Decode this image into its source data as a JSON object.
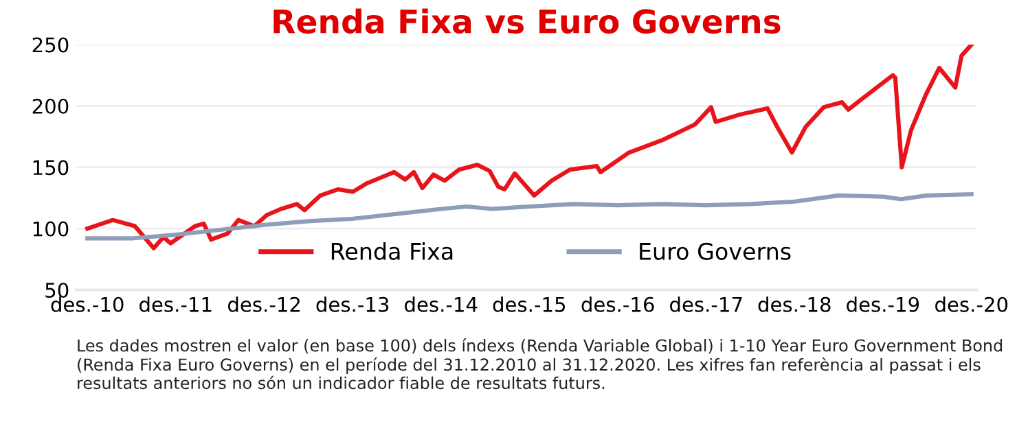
{
  "chart_data": {
    "type": "line",
    "title": "Renda Fixa vs Euro Governs",
    "series": [
      {
        "name": "Renda Fixa",
        "color": "#e8141b",
        "x": [
          "2010-12-31",
          "2011-04-15",
          "2011-07-15",
          "2011-10-01",
          "2011-11-10",
          "2011-12-10",
          "2012-03-20",
          "2012-04-25",
          "2012-05-25",
          "2012-08-01",
          "2012-09-15",
          "2012-11-20",
          "2013-01-10",
          "2013-03-10",
          "2013-05-15",
          "2013-06-15",
          "2013-08-20",
          "2013-11-01",
          "2014-01-01",
          "2014-03-01",
          "2014-06-20",
          "2014-08-05",
          "2014-09-10",
          "2014-10-15",
          "2014-11-30",
          "2015-01-15",
          "2015-03-15",
          "2015-05-30",
          "2015-07-20",
          "2015-08-25",
          "2015-09-20",
          "2015-11-01",
          "2016-01-20",
          "2016-04-01",
          "2016-06-15",
          "2016-10-05",
          "2016-10-20",
          "2017-02-15",
          "2017-07-01",
          "2017-11-15",
          "2018-01-20",
          "2018-02-08",
          "2018-05-20",
          "2018-09-10",
          "2018-10-20",
          "2018-12-20",
          "2019-02-15",
          "2019-05-01",
          "2019-07-15",
          "2019-08-10",
          "2019-10-01",
          "2020-02-10",
          "2020-02-20",
          "2020-03-18",
          "2020-04-25",
          "2020-06-25",
          "2020-08-20",
          "2020-10-25",
          "2020-11-20",
          "2020-12-31"
        ],
        "values": [
          100,
          107,
          102,
          84,
          93,
          88,
          102,
          104,
          91,
          96,
          107,
          102,
          111,
          116,
          120,
          115,
          127,
          132,
          130,
          137,
          146,
          140,
          146,
          133,
          144,
          139,
          148,
          152,
          147,
          134,
          132,
          145,
          127,
          139,
          148,
          151,
          146,
          162,
          172,
          185,
          199,
          187,
          193,
          198,
          183,
          162,
          183,
          199,
          203,
          197,
          205,
          225,
          223,
          150,
          180,
          209,
          231,
          215,
          241,
          250
        ]
      },
      {
        "name": "Euro Governs",
        "color": "#8e9db8",
        "x": [
          "2010-12-31",
          "2011-07-01",
          "2012-01-01",
          "2012-07-01",
          "2013-01-01",
          "2013-07-01",
          "2014-01-01",
          "2014-07-01",
          "2015-01-01",
          "2015-04-15",
          "2015-08-01",
          "2016-01-01",
          "2016-07-01",
          "2017-01-01",
          "2017-07-01",
          "2018-01-01",
          "2018-07-01",
          "2019-01-01",
          "2019-07-01",
          "2020-01-01",
          "2020-03-15",
          "2020-07-01",
          "2020-12-31"
        ],
        "values": [
          92,
          92,
          95,
          99,
          103,
          106,
          108,
          112,
          116,
          118,
          116,
          118,
          120,
          119,
          120,
          119,
          120,
          122,
          127,
          126,
          124,
          127,
          128
        ]
      }
    ],
    "xlim": [
      "2010-11-15",
      "2021-01-20"
    ],
    "xticks": [
      {
        "value": "2010-12-31",
        "label": "des.-10"
      },
      {
        "value": "2011-12-31",
        "label": "des.-11"
      },
      {
        "value": "2012-12-31",
        "label": "des.-12"
      },
      {
        "value": "2013-12-31",
        "label": "des.-13"
      },
      {
        "value": "2014-12-31",
        "label": "des.-14"
      },
      {
        "value": "2015-12-31",
        "label": "des.-15"
      },
      {
        "value": "2016-12-31",
        "label": "des.-16"
      },
      {
        "value": "2017-12-31",
        "label": "des.-17"
      },
      {
        "value": "2018-12-31",
        "label": "des.-18"
      },
      {
        "value": "2019-12-31",
        "label": "des.-19"
      },
      {
        "value": "2020-12-31",
        "label": "des.-20"
      }
    ],
    "ylim": [
      50,
      250
    ],
    "yticks": [
      50,
      100,
      150,
      200,
      250
    ],
    "grid": "y",
    "legend": "bottom",
    "annotations": [
      "Les dades mostren el valor (en base 100) dels índexs (Renda Variable Global) i 1-10 Year Euro Government Bond (Renda Fixa Euro Governs) en el període del 31.12.2010 al 31.12.2020. Les xifres fan referència al passat i els resultats anteriors no són un indicador fiable de resultats futurs."
    ]
  }
}
